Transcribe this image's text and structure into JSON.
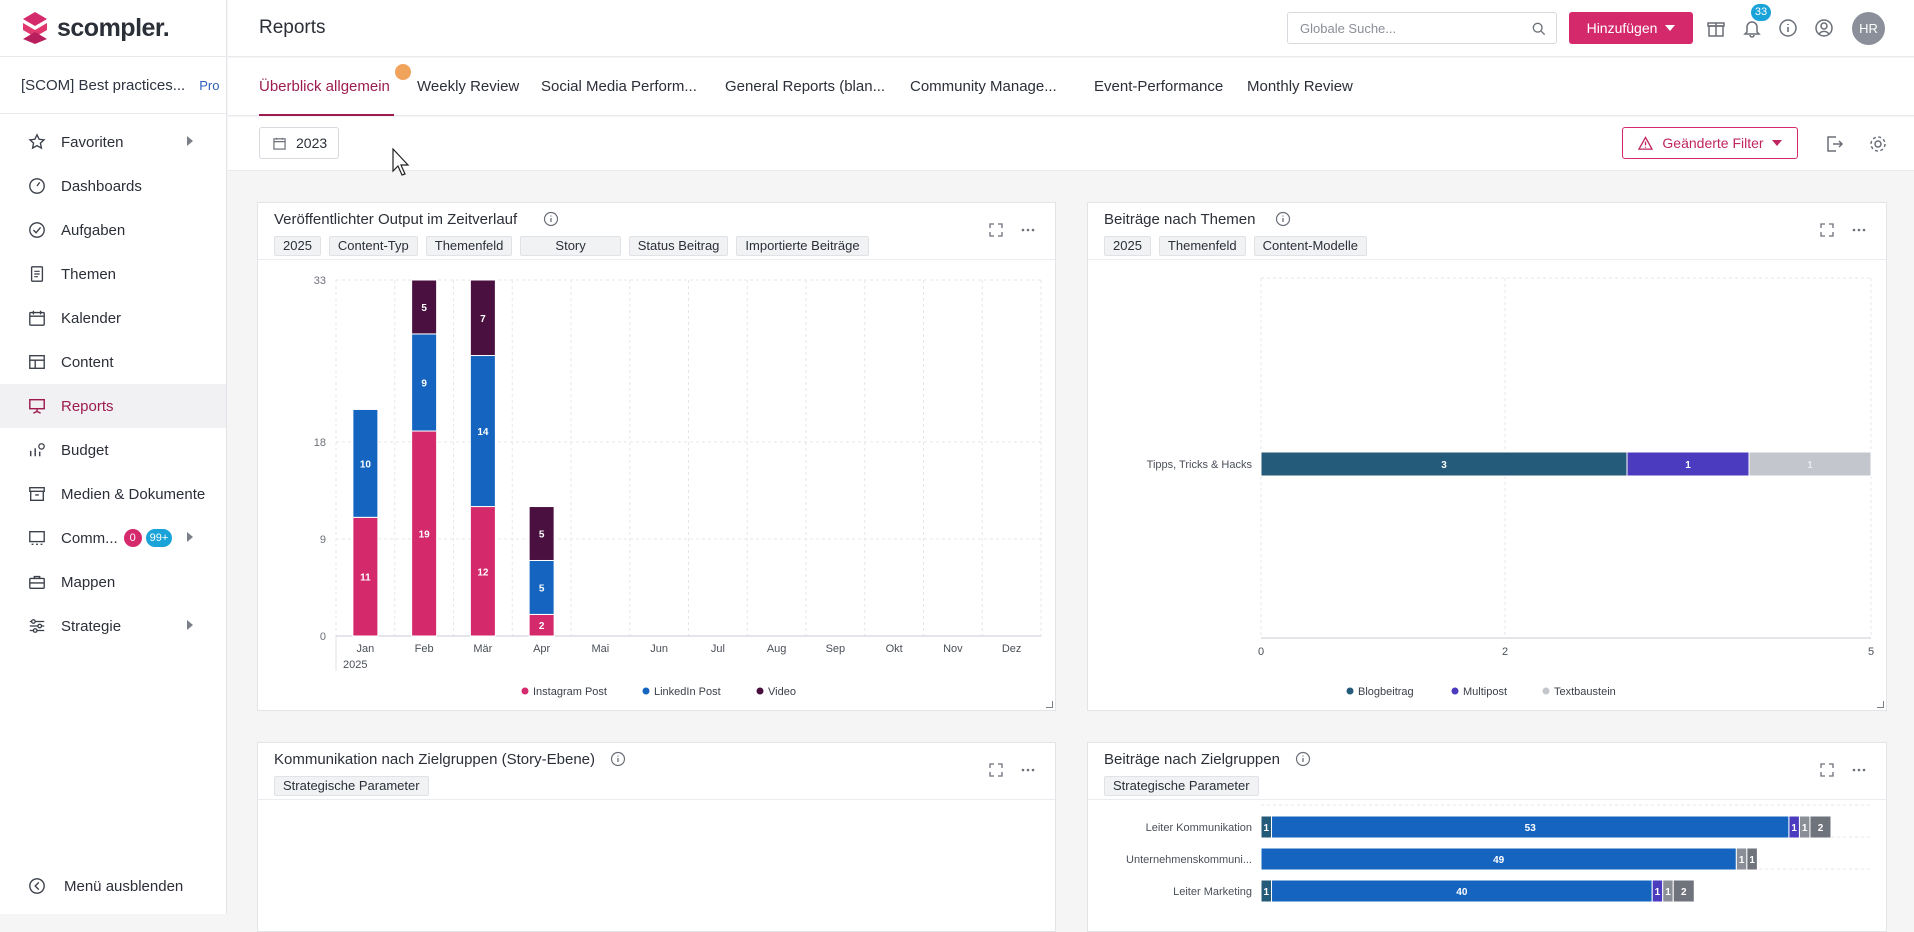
{
  "app": {
    "logo_text": "scompler."
  },
  "sidebar": {
    "org_name": "[SCOM] Best practices...",
    "org_plan": "Pro",
    "items": [
      {
        "label": "Favoriten",
        "icon": "star-icon",
        "has_arrow": true
      },
      {
        "label": "Dashboards",
        "icon": "gauge-icon"
      },
      {
        "label": "Aufgaben",
        "icon": "check-circle-icon"
      },
      {
        "label": "Themen",
        "icon": "document-icon"
      },
      {
        "label": "Kalender",
        "icon": "calendar-icon"
      },
      {
        "label": "Content",
        "icon": "table-icon"
      },
      {
        "label": "Reports",
        "icon": "presentation-icon",
        "active": true
      },
      {
        "label": "Budget",
        "icon": "budget-icon"
      },
      {
        "label": "Medien & Dokumente",
        "icon": "archive-icon"
      },
      {
        "label": "Comm...",
        "icon": "community-icon",
        "badge_red": "0",
        "badge_blue": "99+",
        "has_arrow": true
      },
      {
        "label": "Mappen",
        "icon": "briefcase-icon"
      },
      {
        "label": "Strategie",
        "icon": "sliders-icon",
        "has_arrow": true
      }
    ],
    "hide_menu_label": "Menü ausblenden"
  },
  "header": {
    "title": "Reports",
    "search_placeholder": "Globale Suche...",
    "add_button_label": "Hinzufügen",
    "notification_count": "33",
    "avatar_initials": "HR"
  },
  "tabs": [
    {
      "label": "Überblick allgemein",
      "active": true
    },
    {
      "label": "Weekly Review"
    },
    {
      "label": "Social Media Perform..."
    },
    {
      "label": "General Reports (blan..."
    },
    {
      "label": "Community Manage..."
    },
    {
      "label": "Event-Performance"
    },
    {
      "label": "Monthly Review"
    }
  ],
  "filters": {
    "year": "2023",
    "changed_filter_label": "Geänderte Filter"
  },
  "cards": {
    "output": {
      "title": "Veröffentlichter Output im Zeitverlauf",
      "chips": [
        "2025",
        "Content-Typ",
        "Themenfeld",
        "Story",
        "Status Beitrag",
        "Importierte Beiträge"
      ]
    },
    "themes": {
      "title": "Beiträge nach Themen",
      "chips": [
        "2025",
        "Themenfeld",
        "Content-Modelle"
      ]
    },
    "communication": {
      "title": "Kommunikation nach Zielgruppen (Story-Ebene)",
      "chips": [
        "Strategische Parameter"
      ]
    },
    "audience": {
      "title": "Beiträge nach Zielgruppen",
      "chips": [
        "Strategische Parameter"
      ]
    }
  },
  "chart_data": [
    {
      "type": "bar",
      "stacked": true,
      "title": "Veröffentlichter Output im Zeitverlauf",
      "categories": [
        "Jan",
        "Feb",
        "Mär",
        "Apr",
        "Mai",
        "Jun",
        "Jul",
        "Aug",
        "Sep",
        "Okt",
        "Nov",
        "Dez"
      ],
      "x_group_label": "2025",
      "yticks": [
        "0",
        "9",
        "18",
        "33"
      ],
      "ylim": [
        0,
        33
      ],
      "series": [
        {
          "name": "Instagram Post",
          "color": "#d42a6c",
          "values": [
            11,
            19,
            12,
            2,
            0,
            0,
            0,
            0,
            0,
            0,
            0,
            0
          ]
        },
        {
          "name": "LinkedIn Post",
          "color": "#1565c0",
          "values": [
            10,
            9,
            14,
            5,
            0,
            0,
            0,
            0,
            0,
            0,
            0,
            0
          ]
        },
        {
          "name": "Video",
          "color": "#4a1040",
          "values": [
            0,
            5,
            7,
            5,
            0,
            0,
            0,
            0,
            0,
            0,
            0,
            0
          ]
        }
      ],
      "legend": "bottom"
    },
    {
      "type": "bar",
      "orientation": "horizontal",
      "stacked": true,
      "title": "Beiträge nach Themen",
      "categories": [
        "Tipps, Tricks & Hacks"
      ],
      "xticks": [
        "0",
        "2",
        "5"
      ],
      "xlim": [
        0,
        5
      ],
      "series": [
        {
          "name": "Blogbeitrag",
          "color": "#245a7a",
          "values": [
            3
          ]
        },
        {
          "name": "Multipost",
          "color": "#4b3bbf",
          "values": [
            1
          ]
        },
        {
          "name": "Textbaustein",
          "color": "#c3c6cc",
          "values": [
            1
          ]
        }
      ],
      "value_labels": [
        "3",
        "1",
        "1"
      ],
      "legend": "bottom"
    },
    {
      "type": "bar",
      "orientation": "horizontal",
      "stacked": true,
      "title": "Beiträge nach Zielgruppen",
      "categories": [
        "Leiter Kommunikation",
        "Unternehmenskommuni...",
        "Leiter Marketing"
      ],
      "series": [
        {
          "color": "#245a7a",
          "values": [
            1,
            0,
            1
          ]
        },
        {
          "color": "#1565c0",
          "values": [
            53,
            49,
            40
          ]
        },
        {
          "color": "#4b3bbf",
          "values": [
            1,
            0,
            1
          ]
        },
        {
          "color": "#8a8e97",
          "values": [
            1,
            1,
            1
          ]
        },
        {
          "color": "#6f737c",
          "values": [
            2,
            1,
            2
          ]
        }
      ]
    }
  ]
}
